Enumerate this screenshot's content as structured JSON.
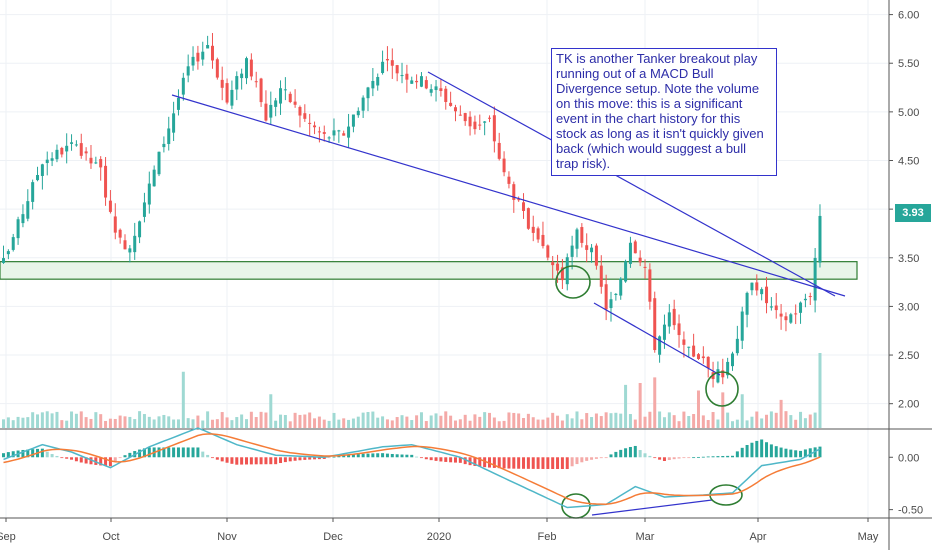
{
  "annotation": {
    "text": "TK is another Tanker breakout play running out of a MACD Bull Divergence setup. Note the volume on this move: this is a significant event in the chart history for this stock as long as it isn't quickly given back (which would suggest a bull trap risk)."
  },
  "colors": {
    "up": "#26a69a",
    "down": "#ef5350",
    "up_vol": "#9fd9d3",
    "down_vol": "#f4a9a7",
    "trendline": "#3333cc",
    "circle": "#2e7d32",
    "zone_fill": "#e8f5e9",
    "zone_border": "#2e7d32",
    "macd_line": "#4fb7c8",
    "signal_line": "#f57c37",
    "axis_text": "#4a4a4a",
    "grid": "#eef1f5"
  },
  "chart_data": [
    {
      "type": "candlestick",
      "title": "",
      "x_tick_labels": [
        "Sep",
        "Oct",
        "Nov",
        "Dec",
        "2020",
        "Feb",
        "Mar",
        "Apr",
        "May"
      ],
      "y_tick_labels": [
        "2.00",
        "2.50",
        "3.00",
        "3.50",
        "4.00",
        "4.50",
        "5.00",
        "5.50",
        "6.00"
      ],
      "ylim": [
        1.75,
        6.15
      ],
      "last_price_label": "3.93",
      "resistance_zone": [
        3.28,
        3.46
      ],
      "anchors": [
        {
          "bar": 0,
          "close": 3.45
        },
        {
          "bar": 8,
          "close": 4.5
        },
        {
          "bar": 14,
          "close": 4.65
        },
        {
          "bar": 20,
          "close": 4.4
        },
        {
          "bar": 23,
          "close": 3.7
        },
        {
          "bar": 26,
          "close": 3.62
        },
        {
          "bar": 32,
          "close": 4.55
        },
        {
          "bar": 38,
          "close": 5.45
        },
        {
          "bar": 42,
          "close": 5.7
        },
        {
          "bar": 46,
          "close": 5.1
        },
        {
          "bar": 50,
          "close": 5.55
        },
        {
          "bar": 54,
          "close": 4.95
        },
        {
          "bar": 57,
          "close": 5.25
        },
        {
          "bar": 62,
          "close": 4.92
        },
        {
          "bar": 66,
          "close": 4.75
        },
        {
          "bar": 70,
          "close": 4.78
        },
        {
          "bar": 74,
          "close": 5.15
        },
        {
          "bar": 78,
          "close": 5.5
        },
        {
          "bar": 82,
          "close": 5.4
        },
        {
          "bar": 86,
          "close": 5.32
        },
        {
          "bar": 90,
          "close": 5.2
        },
        {
          "bar": 94,
          "close": 4.95
        },
        {
          "bar": 97,
          "close": 4.85
        },
        {
          "bar": 100,
          "close": 4.9
        },
        {
          "bar": 103,
          "close": 4.35
        },
        {
          "bar": 106,
          "close": 4.05
        },
        {
          "bar": 109,
          "close": 3.7
        },
        {
          "bar": 112,
          "close": 3.5
        },
        {
          "bar": 115,
          "close": 3.3
        },
        {
          "bar": 118,
          "close": 3.75
        },
        {
          "bar": 121,
          "close": 3.55
        },
        {
          "bar": 124,
          "close": 3.0
        },
        {
          "bar": 126,
          "close": 3.1
        },
        {
          "bar": 129,
          "close": 3.7
        },
        {
          "bar": 132,
          "close": 3.4
        },
        {
          "bar": 134,
          "close": 2.6
        },
        {
          "bar": 137,
          "close": 2.9
        },
        {
          "bar": 140,
          "close": 2.55
        },
        {
          "bar": 143,
          "close": 2.5
        },
        {
          "bar": 146,
          "close": 2.3
        },
        {
          "bar": 148,
          "close": 2.3
        },
        {
          "bar": 151,
          "close": 2.7
        },
        {
          "bar": 154,
          "close": 3.3
        },
        {
          "bar": 157,
          "close": 3.05
        },
        {
          "bar": 160,
          "close": 2.85
        },
        {
          "bar": 163,
          "close": 2.95
        },
        {
          "bar": 166,
          "close": 3.15
        },
        {
          "bar": 167,
          "close": 3.5
        },
        {
          "bar": 168,
          "close": 3.93
        }
      ],
      "volume_spikes": [
        {
          "bar": 37,
          "volume": 3.0
        },
        {
          "bar": 55,
          "volume": 1.8
        },
        {
          "bar": 128,
          "volume": 2.3
        },
        {
          "bar": 131,
          "volume": 2.4
        },
        {
          "bar": 134,
          "volume": 2.7
        },
        {
          "bar": 143,
          "volume": 2.0
        },
        {
          "bar": 148,
          "volume": 1.9
        },
        {
          "bar": 152,
          "volume": 1.8
        },
        {
          "bar": 160,
          "volume": 1.5
        },
        {
          "bar": 168,
          "volume": 4.0
        }
      ]
    },
    {
      "type": "macd",
      "title": "",
      "y_tick_labels": [
        "0.00",
        "-0.50"
      ],
      "ylim": [
        -0.58,
        0.27
      ],
      "macd_anchors": [
        {
          "bar": 0,
          "value": -0.02
        },
        {
          "bar": 8,
          "value": 0.12
        },
        {
          "bar": 14,
          "value": 0.05
        },
        {
          "bar": 22,
          "value": -0.1
        },
        {
          "bar": 30,
          "value": 0.1
        },
        {
          "bar": 40,
          "value": 0.28
        },
        {
          "bar": 48,
          "value": 0.12
        },
        {
          "bar": 56,
          "value": 0.02
        },
        {
          "bar": 66,
          "value": 0.0
        },
        {
          "bar": 78,
          "value": 0.1
        },
        {
          "bar": 84,
          "value": 0.12
        },
        {
          "bar": 94,
          "value": 0.0
        },
        {
          "bar": 104,
          "value": -0.22
        },
        {
          "bar": 110,
          "value": -0.35
        },
        {
          "bar": 116,
          "value": -0.48
        },
        {
          "bar": 124,
          "value": -0.45
        },
        {
          "bar": 130,
          "value": -0.28
        },
        {
          "bar": 136,
          "value": -0.38
        },
        {
          "bar": 144,
          "value": -0.36
        },
        {
          "bar": 150,
          "value": -0.34
        },
        {
          "bar": 156,
          "value": -0.08
        },
        {
          "bar": 164,
          "value": -0.02
        },
        {
          "bar": 168,
          "value": 0.08
        }
      ],
      "signal_period": 9,
      "histogram_scale": 1.3
    }
  ]
}
